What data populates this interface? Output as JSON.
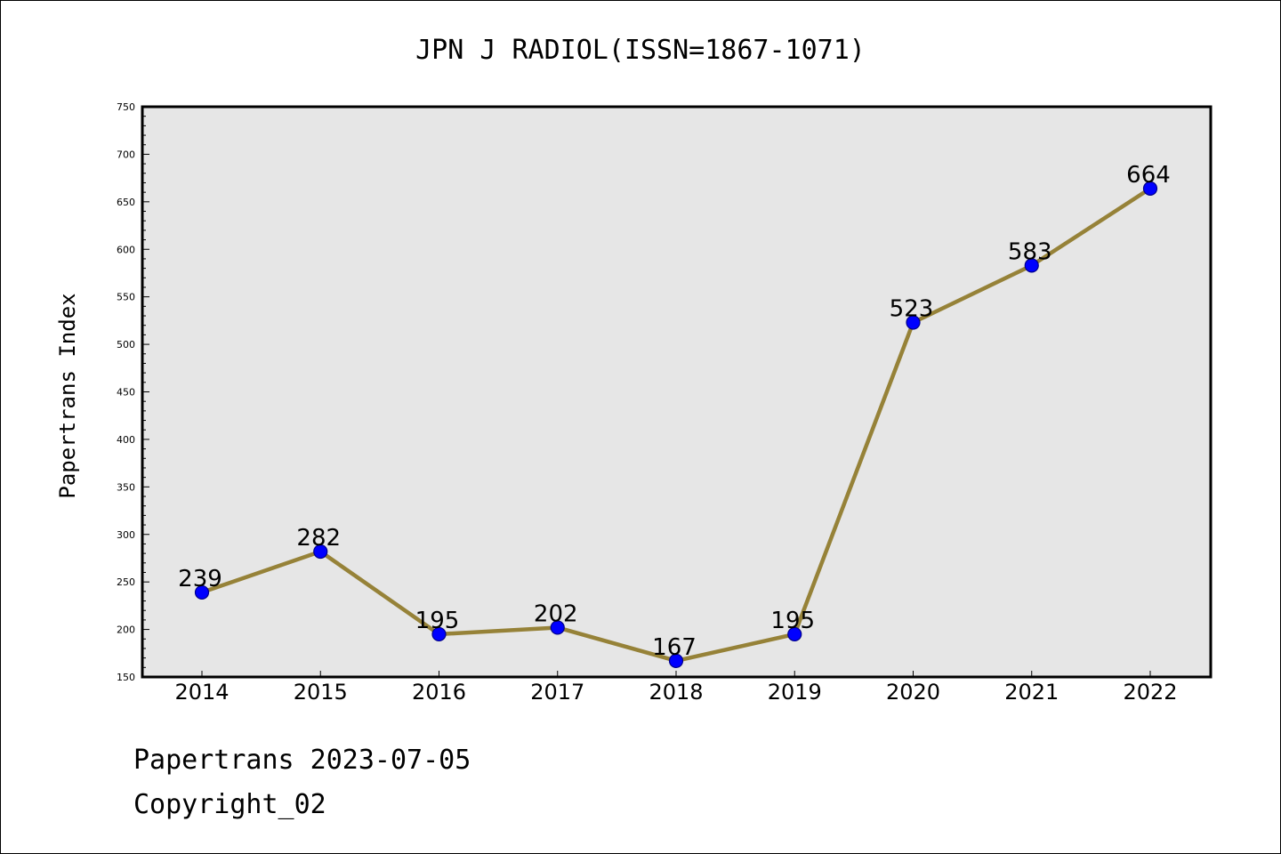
{
  "chart_data": {
    "type": "line",
    "title": "JPN J RADIOL(ISSN=1867-1071)",
    "xlabel": "",
    "ylabel": "Papertrans Index",
    "categories": [
      "2014",
      "2015",
      "2016",
      "2017",
      "2018",
      "2019",
      "2020",
      "2021",
      "2022"
    ],
    "series": [
      {
        "values": [
          239,
          282,
          195,
          202,
          167,
          195,
          523,
          583,
          664
        ]
      }
    ],
    "ylim": [
      150,
      750
    ],
    "yticks": [
      150,
      200,
      250,
      300,
      350,
      400,
      450,
      500,
      550,
      600,
      650,
      700,
      750
    ],
    "grid": false,
    "colors": {
      "line": "#968238",
      "marker": "#0000ff",
      "marker_edge": "#00008b",
      "plot_bg": "#e6e6e6"
    }
  },
  "footer": {
    "date_line": "Papertrans 2023-07-05",
    "copyright": "Copyright_02"
  }
}
